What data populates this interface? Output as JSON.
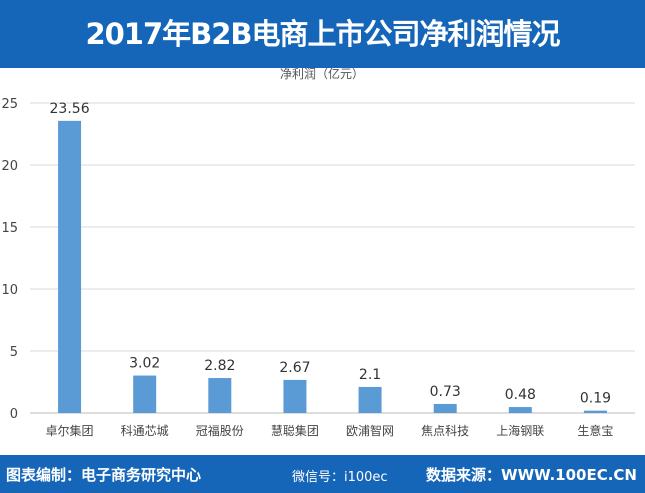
{
  "header": {
    "title": "2017年B2B电商上市公司净利润情况"
  },
  "footer": {
    "compiled_by": "图表编制：电子商务研究中心",
    "source": "数据来源：WWW.100EC.CN",
    "wechat": "微信号：i100ec"
  },
  "chart_data": {
    "type": "bar",
    "title": "净利润（亿元）",
    "xlabel": "",
    "ylabel": "",
    "categories": [
      "卓尔集团",
      "科通芯城",
      "冠福股份",
      "慧聪集团",
      "欧浦智网",
      "焦点科技",
      "上海钢联",
      "生意宝"
    ],
    "values": [
      23.56,
      3.02,
      2.82,
      2.67,
      2.1,
      0.73,
      0.48,
      0.19
    ],
    "ylim": [
      0,
      25
    ],
    "yticks": [
      0,
      5,
      10,
      15,
      20,
      25
    ],
    "grid": true,
    "color": "#5b9bd5"
  }
}
